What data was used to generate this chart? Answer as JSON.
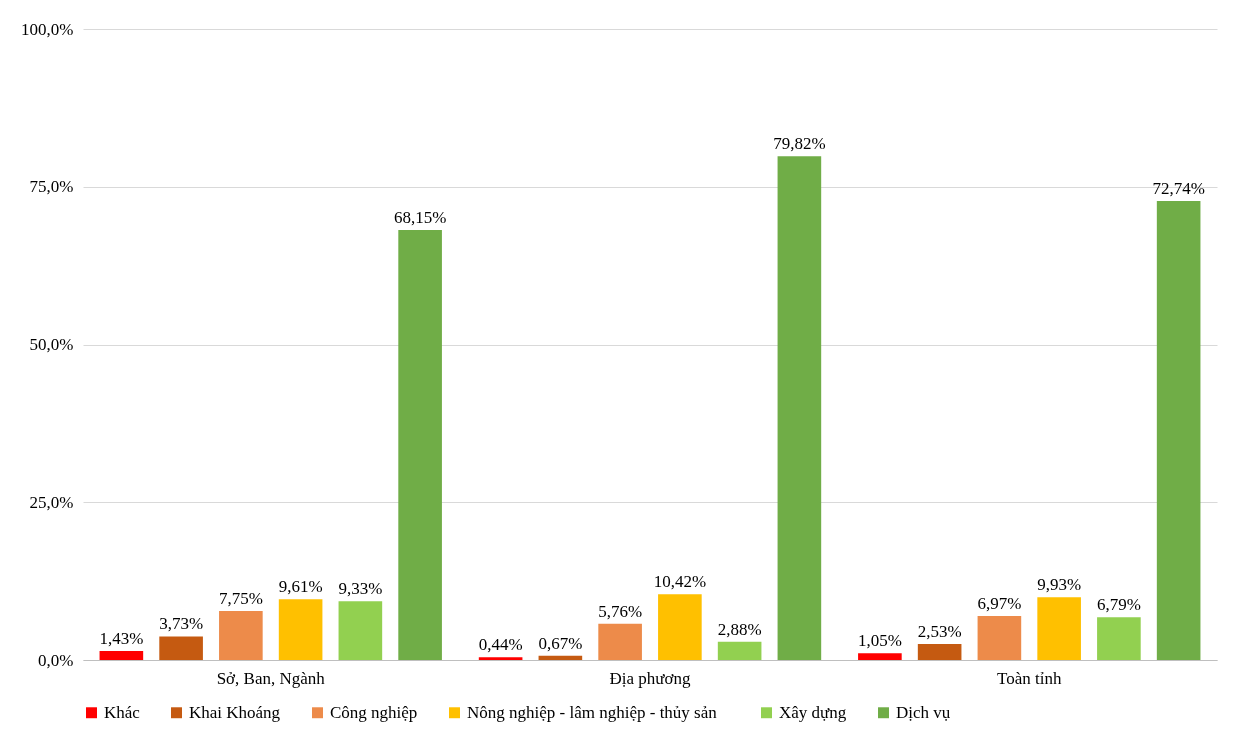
{
  "chart_data": {
    "type": "bar",
    "categories": [
      "Sở, Ban, Ngành",
      "Địa phương",
      "Toàn tỉnh"
    ],
    "series": [
      {
        "name": "Khác",
        "color": "#ff0000",
        "values": [
          1.43,
          0.44,
          1.05
        ],
        "value_labels": [
          "1,43%",
          "0,44%",
          "1,05%"
        ]
      },
      {
        "name": "Khai Khoáng",
        "color": "#c55a11",
        "values": [
          3.73,
          0.67,
          2.53
        ],
        "value_labels": [
          "3,73%",
          "0,67%",
          "2,53%"
        ]
      },
      {
        "name": "Công nghiệp",
        "color": "#ed8b4a",
        "values": [
          7.75,
          5.76,
          6.97
        ],
        "value_labels": [
          "7,75%",
          "5,76%",
          "6,97%"
        ]
      },
      {
        "name": "Nông nghiệp  - lâm  nghiệp  - thủy sản",
        "color": "#ffc000",
        "values": [
          9.61,
          10.42,
          9.93
        ],
        "value_labels": [
          "9,61%",
          "10,42%",
          "9,93%"
        ]
      },
      {
        "name": "Xây dựng",
        "color": "#92d050",
        "values": [
          9.33,
          2.88,
          6.79
        ],
        "value_labels": [
          "9,33%",
          "2,88%",
          "6,79%"
        ]
      },
      {
        "name": "Dịch vụ",
        "color": "#70ad47",
        "values": [
          68.15,
          79.82,
          72.74
        ],
        "value_labels": [
          "68,15%",
          "79,82%",
          "72,74%"
        ]
      }
    ],
    "ylim": [
      0,
      100
    ],
    "yticks": [
      {
        "value": 0,
        "label": "0,0%"
      },
      {
        "value": 25,
        "label": "25,0%"
      },
      {
        "value": 50,
        "label": "50,0%"
      },
      {
        "value": 75,
        "label": "75,0%"
      },
      {
        "value": 100,
        "label": "100,0%"
      }
    ],
    "grid": "y",
    "legend": "bottom"
  }
}
